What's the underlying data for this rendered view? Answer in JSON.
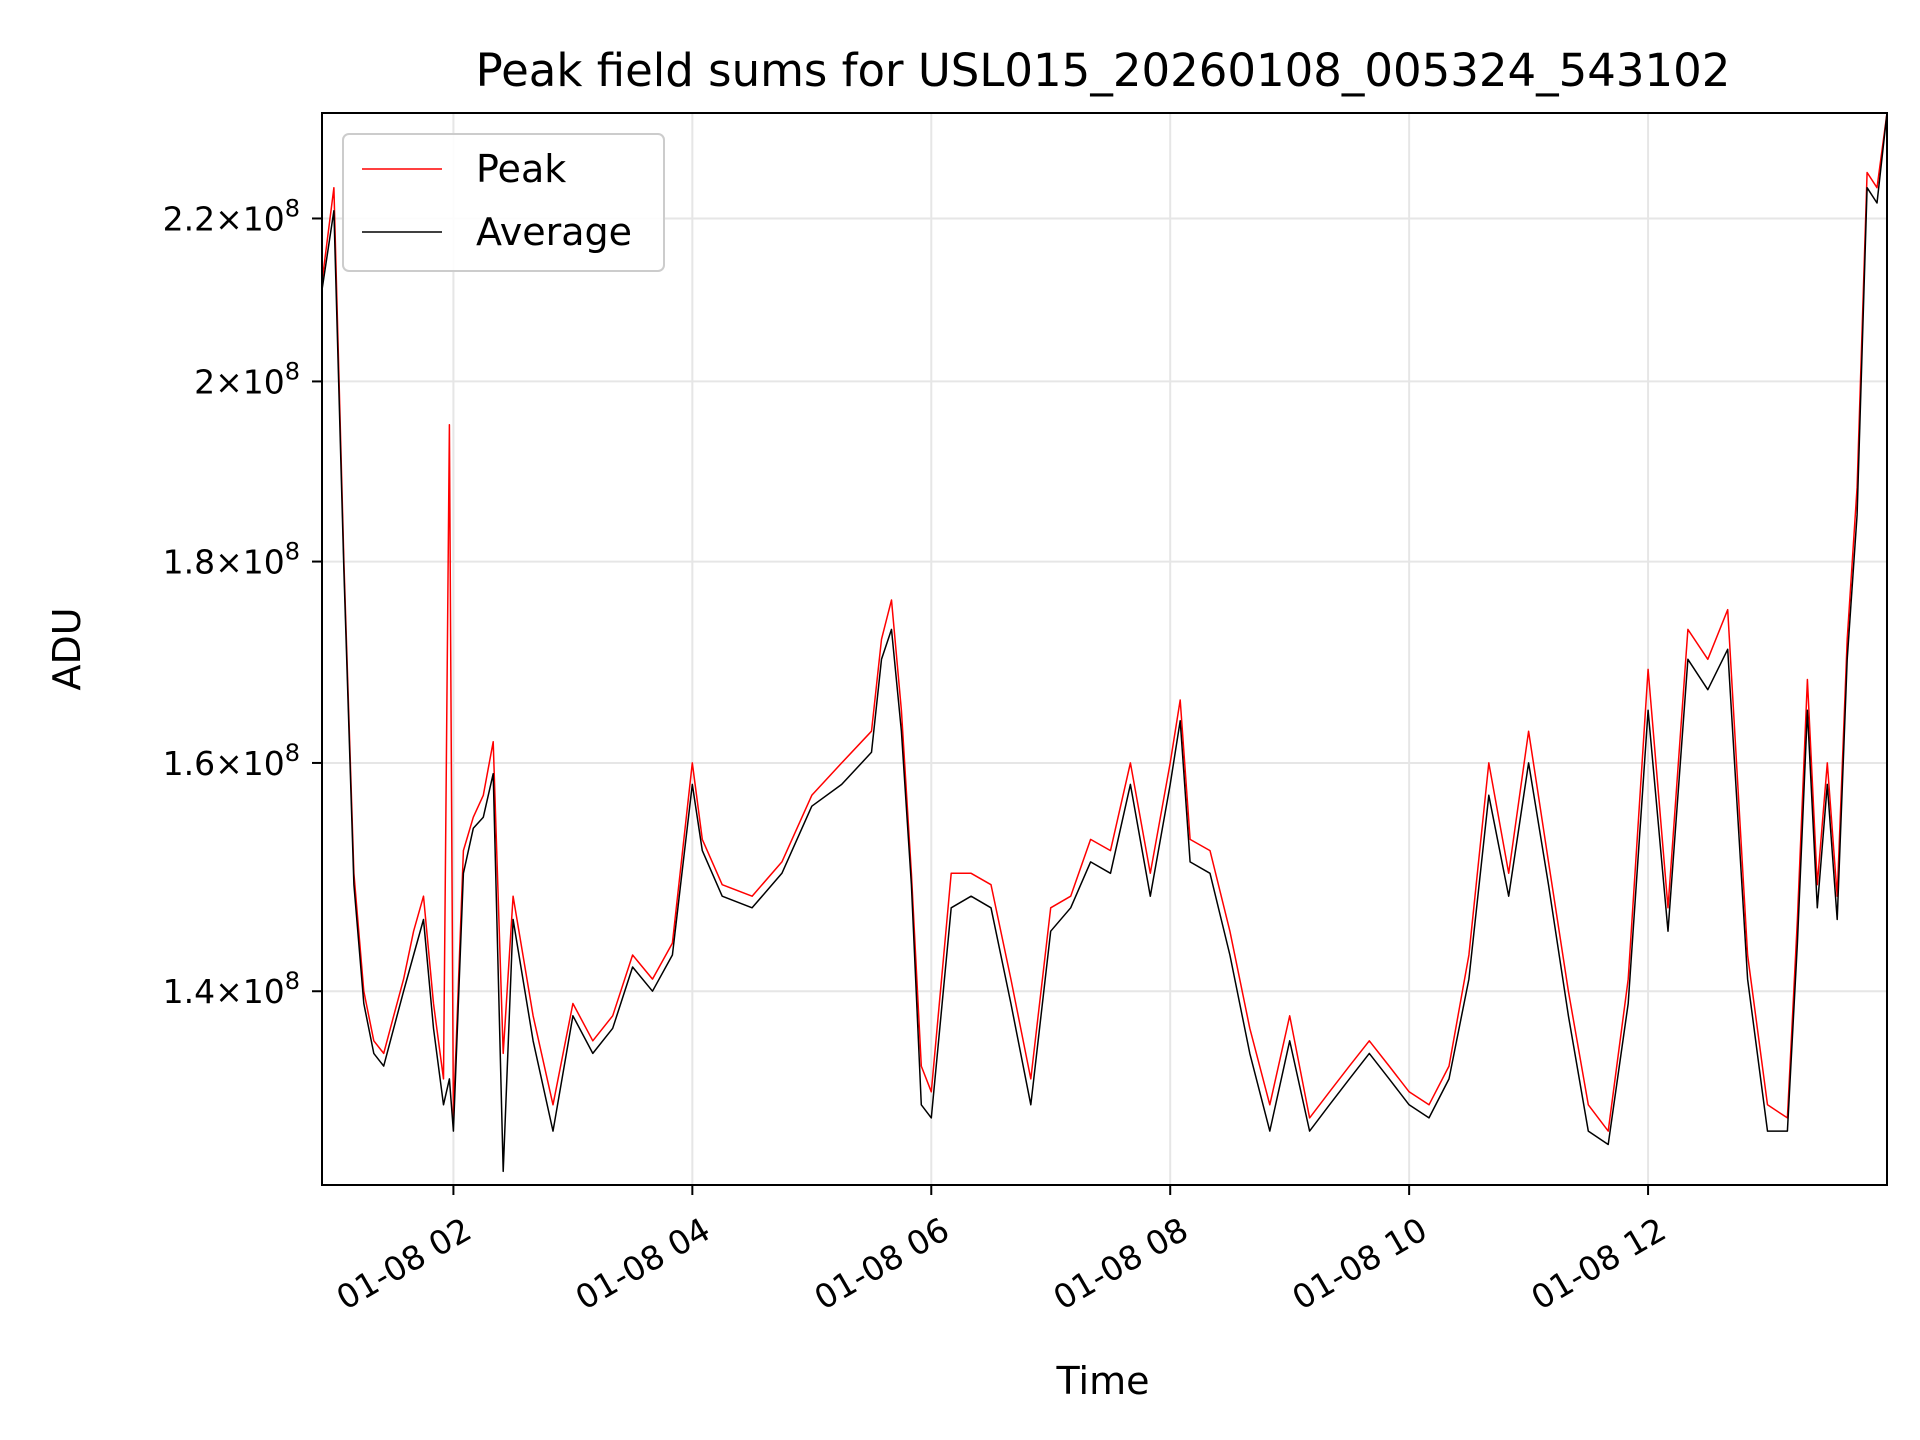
{
  "chart_data": {
    "type": "line",
    "title": "Peak field sums for USL015_20260108_005324_543102",
    "xlabel": "Time",
    "ylabel": "ADU",
    "x_ticks": [
      "01-08 02",
      "01-08 04",
      "01-08 06",
      "01-08 08",
      "01-08 10",
      "01-08 12"
    ],
    "y_ticks": [
      {
        "value": 140000000,
        "mantissa": "1.4",
        "exponent": "8"
      },
      {
        "value": 160000000,
        "mantissa": "1.6",
        "exponent": "8"
      },
      {
        "value": 180000000,
        "mantissa": "1.8",
        "exponent": "8"
      },
      {
        "value": 200000000,
        "mantissa": "2",
        "exponent": "8"
      },
      {
        "value": 220000000,
        "mantissa": "2.2",
        "exponent": "8"
      }
    ],
    "y_scale": "log",
    "xlim": [
      "01-08 00:54",
      "01-08 14:00"
    ],
    "ylim": [
      125000000,
      234000000
    ],
    "grid": true,
    "legend_position": "upper-left",
    "series": [
      {
        "name": "Peak",
        "color": "#ff0000",
        "x": [
          "01-08 00:54",
          "01-08 01:00",
          "01-08 01:05",
          "01-08 01:10",
          "01-08 01:15",
          "01-08 01:20",
          "01-08 01:25",
          "01-08 01:30",
          "01-08 01:35",
          "01-08 01:40",
          "01-08 01:45",
          "01-08 01:50",
          "01-08 01:55",
          "01-08 01:58",
          "01-08 02:00",
          "01-08 02:05",
          "01-08 02:10",
          "01-08 02:15",
          "01-08 02:20",
          "01-08 02:25",
          "01-08 02:30",
          "01-08 02:40",
          "01-08 02:50",
          "01-08 03:00",
          "01-08 03:10",
          "01-08 03:20",
          "01-08 03:30",
          "01-08 03:40",
          "01-08 03:50",
          "01-08 04:00",
          "01-08 04:05",
          "01-08 04:15",
          "01-08 04:30",
          "01-08 04:45",
          "01-08 05:00",
          "01-08 05:15",
          "01-08 05:30",
          "01-08 05:35",
          "01-08 05:40",
          "01-08 05:45",
          "01-08 05:50",
          "01-08 05:55",
          "01-08 06:00",
          "01-08 06:10",
          "01-08 06:20",
          "01-08 06:30",
          "01-08 06:40",
          "01-08 06:50",
          "01-08 07:00",
          "01-08 07:10",
          "01-08 07:20",
          "01-08 07:30",
          "01-08 07:40",
          "01-08 07:50",
          "01-08 08:00",
          "01-08 08:05",
          "01-08 08:10",
          "01-08 08:20",
          "01-08 08:30",
          "01-08 08:40",
          "01-08 08:50",
          "01-08 09:00",
          "01-08 09:10",
          "01-08 09:20",
          "01-08 09:30",
          "01-08 09:40",
          "01-08 09:50",
          "01-08 10:00",
          "01-08 10:10",
          "01-08 10:20",
          "01-08 10:30",
          "01-08 10:40",
          "01-08 10:50",
          "01-08 11:00",
          "01-08 11:10",
          "01-08 11:20",
          "01-08 11:30",
          "01-08 11:40",
          "01-08 11:50",
          "01-08 12:00",
          "01-08 12:10",
          "01-08 12:20",
          "01-08 12:30",
          "01-08 12:40",
          "01-08 12:50",
          "01-08 13:00",
          "01-08 13:10",
          "01-08 13:15",
          "01-08 13:20",
          "01-08 13:25",
          "01-08 13:30",
          "01-08 13:35",
          "01-08 13:40",
          "01-08 13:45",
          "01-08 13:50",
          "01-08 13:55",
          "01-08 14:00"
        ],
        "y": [
          212000000,
          224000000,
          180000000,
          150000000,
          140000000,
          136000000,
          135000000,
          138000000,
          141000000,
          145000000,
          148000000,
          139000000,
          133000000,
          195000000,
          130000000,
          152000000,
          155000000,
          157000000,
          162000000,
          135000000,
          148000000,
          138000000,
          131000000,
          139000000,
          136000000,
          138000000,
          143000000,
          141000000,
          144000000,
          160000000,
          153000000,
          149000000,
          148000000,
          151000000,
          157000000,
          160000000,
          163000000,
          172000000,
          176000000,
          165000000,
          150000000,
          134000000,
          132000000,
          150000000,
          150000000,
          149000000,
          141000000,
          133000000,
          147000000,
          148000000,
          153000000,
          152000000,
          160000000,
          150000000,
          160000000,
          166000000,
          153000000,
          152000000,
          145000000,
          137000000,
          131000000,
          138000000,
          130000000,
          132000000,
          134000000,
          136000000,
          134000000,
          132000000,
          131000000,
          134000000,
          143000000,
          160000000,
          150000000,
          163000000,
          151000000,
          140000000,
          131000000,
          129000000,
          141000000,
          169000000,
          147000000,
          173000000,
          170000000,
          175000000,
          143000000,
          131000000,
          130000000,
          146000000,
          168000000,
          149000000,
          160000000,
          148000000,
          172000000,
          188000000,
          226000000,
          224000000,
          234000000
        ]
      },
      {
        "name": "Average",
        "color": "#000000",
        "x": [
          "01-08 00:54",
          "01-08 01:00",
          "01-08 01:05",
          "01-08 01:10",
          "01-08 01:15",
          "01-08 01:20",
          "01-08 01:25",
          "01-08 01:30",
          "01-08 01:35",
          "01-08 01:40",
          "01-08 01:45",
          "01-08 01:50",
          "01-08 01:55",
          "01-08 01:58",
          "01-08 02:00",
          "01-08 02:05",
          "01-08 02:10",
          "01-08 02:15",
          "01-08 02:20",
          "01-08 02:25",
          "01-08 02:30",
          "01-08 02:40",
          "01-08 02:50",
          "01-08 03:00",
          "01-08 03:10",
          "01-08 03:20",
          "01-08 03:30",
          "01-08 03:40",
          "01-08 03:50",
          "01-08 04:00",
          "01-08 04:05",
          "01-08 04:15",
          "01-08 04:30",
          "01-08 04:45",
          "01-08 05:00",
          "01-08 05:15",
          "01-08 05:30",
          "01-08 05:35",
          "01-08 05:40",
          "01-08 05:45",
          "01-08 05:50",
          "01-08 05:55",
          "01-08 06:00",
          "01-08 06:10",
          "01-08 06:20",
          "01-08 06:30",
          "01-08 06:40",
          "01-08 06:50",
          "01-08 07:00",
          "01-08 07:10",
          "01-08 07:20",
          "01-08 07:30",
          "01-08 07:40",
          "01-08 07:50",
          "01-08 08:00",
          "01-08 08:05",
          "01-08 08:10",
          "01-08 08:20",
          "01-08 08:30",
          "01-08 08:40",
          "01-08 08:50",
          "01-08 09:00",
          "01-08 09:10",
          "01-08 09:20",
          "01-08 09:30",
          "01-08 09:40",
          "01-08 09:50",
          "01-08 10:00",
          "01-08 10:10",
          "01-08 10:20",
          "01-08 10:30",
          "01-08 10:40",
          "01-08 10:50",
          "01-08 11:00",
          "01-08 11:10",
          "01-08 11:20",
          "01-08 11:30",
          "01-08 11:40",
          "01-08 11:50",
          "01-08 12:00",
          "01-08 12:10",
          "01-08 12:20",
          "01-08 12:30",
          "01-08 12:40",
          "01-08 12:50",
          "01-08 13:00",
          "01-08 13:10",
          "01-08 13:15",
          "01-08 13:20",
          "01-08 13:25",
          "01-08 13:30",
          "01-08 13:35",
          "01-08 13:40",
          "01-08 13:45",
          "01-08 13:50",
          "01-08 13:55",
          "01-08 14:00"
        ],
        "y": [
          211000000,
          221000000,
          179000000,
          149000000,
          139000000,
          135000000,
          134000000,
          137000000,
          140000000,
          143000000,
          146000000,
          137000000,
          131000000,
          133000000,
          129000000,
          150000000,
          154000000,
          155000000,
          159000000,
          126000000,
          146000000,
          136000000,
          129000000,
          138000000,
          135000000,
          137000000,
          142000000,
          140000000,
          143000000,
          158000000,
          152000000,
          148000000,
          147000000,
          150000000,
          156000000,
          158000000,
          161000000,
          170000000,
          173000000,
          163000000,
          149000000,
          131000000,
          130000000,
          147000000,
          148000000,
          147000000,
          139000000,
          131000000,
          145000000,
          147000000,
          151000000,
          150000000,
          158000000,
          148000000,
          158000000,
          164000000,
          151000000,
          150000000,
          143000000,
          135000000,
          129000000,
          136000000,
          129000000,
          131000000,
          133000000,
          135000000,
          133000000,
          131000000,
          130000000,
          133000000,
          141000000,
          157000000,
          148000000,
          160000000,
          149000000,
          138000000,
          129000000,
          128000000,
          139000000,
          165000000,
          145000000,
          170000000,
          167000000,
          171000000,
          141000000,
          129000000,
          129000000,
          144000000,
          165000000,
          147000000,
          158000000,
          146000000,
          170000000,
          185000000,
          224000000,
          222000000,
          234000000
        ]
      }
    ]
  }
}
